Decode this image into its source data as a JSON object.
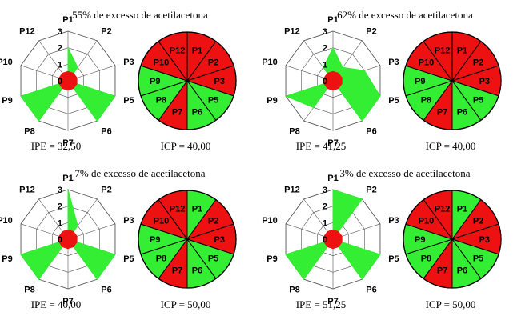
{
  "colors": {
    "good": "#33ee33",
    "bad": "#ee1111",
    "outline": "#000000",
    "grid": "#555555",
    "background": "#ffffff"
  },
  "chart_data": [
    {
      "type": "radar",
      "title": "55% de excesso de acetilacetona",
      "axes": [
        "P1",
        "P2",
        "P3",
        "P5",
        "P6",
        "P7",
        "P8",
        "P9",
        "P10",
        "P12"
      ],
      "rlim": [
        0,
        3
      ],
      "rticks": [
        "0",
        "1",
        "2",
        "3"
      ],
      "values": [
        2,
        1,
        0,
        3,
        3,
        0,
        3,
        3,
        0,
        0
      ],
      "ipe_label": "IPE = 32,50",
      "pie": {
        "type": "pie",
        "slices": [
          "P1",
          "P2",
          "P3",
          "P5",
          "P6",
          "P7",
          "P8",
          "P9",
          "P10",
          "P12"
        ],
        "status": [
          "bad",
          "bad",
          "bad",
          "good",
          "good",
          "bad",
          "good",
          "good",
          "bad",
          "bad"
        ]
      },
      "icp_label": "ICP = 40,00"
    },
    {
      "type": "radar",
      "title": "62% de excesso de acetilacetona",
      "axes": [
        "P1",
        "P2",
        "P3",
        "P5",
        "P6",
        "P7",
        "P8",
        "P9",
        "P10",
        "P12"
      ],
      "rlim": [
        0,
        3
      ],
      "rticks": [
        "0",
        "1",
        "2",
        "3"
      ],
      "values": [
        2,
        1,
        2,
        3,
        3,
        0,
        2,
        3,
        0,
        1
      ],
      "ipe_label": "IPE = 41,25",
      "pie": {
        "type": "pie",
        "slices": [
          "P1",
          "P2",
          "P3",
          "P5",
          "P6",
          "P7",
          "P8",
          "P9",
          "P10",
          "P12"
        ],
        "status": [
          "bad",
          "bad",
          "bad",
          "good",
          "good",
          "bad",
          "good",
          "good",
          "bad",
          "bad"
        ]
      },
      "icp_label": "ICP = 40,00"
    },
    {
      "type": "radar",
      "title": "7% de excesso de acetilacetona",
      "axes": [
        "P1",
        "P2",
        "P3",
        "P5",
        "P6",
        "P7",
        "P8",
        "P9",
        "P10",
        "P12"
      ],
      "rlim": [
        0,
        3
      ],
      "rticks": [
        "0",
        "1",
        "2",
        "3"
      ],
      "values": [
        3,
        1,
        0,
        3,
        3,
        0,
        3,
        3,
        0,
        0
      ],
      "ipe_label": "IPE = 40,00",
      "pie": {
        "type": "pie",
        "slices": [
          "P1",
          "P2",
          "P3",
          "P5",
          "P6",
          "P7",
          "P8",
          "P9",
          "P10",
          "P12"
        ],
        "status": [
          "good",
          "bad",
          "bad",
          "good",
          "good",
          "bad",
          "good",
          "good",
          "bad",
          "bad"
        ]
      },
      "icp_label": "ICP = 50,00"
    },
    {
      "type": "radar",
      "title": "3% de excesso de acetilacetona",
      "axes": [
        "P1",
        "P2",
        "P3",
        "P5",
        "P6",
        "P7",
        "P8",
        "P9",
        "P10",
        "P12"
      ],
      "rlim": [
        0,
        3
      ],
      "rticks": [
        "0",
        "1",
        "2",
        "3"
      ],
      "values": [
        3,
        3,
        0,
        3,
        3,
        0,
        3,
        3,
        0,
        0
      ],
      "ipe_label": "IPE = 51,25",
      "pie": {
        "type": "pie",
        "slices": [
          "P1",
          "P2",
          "P3",
          "P5",
          "P6",
          "P7",
          "P8",
          "P9",
          "P10",
          "P12"
        ],
        "status": [
          "good",
          "bad",
          "bad",
          "good",
          "good",
          "bad",
          "good",
          "good",
          "bad",
          "bad"
        ]
      },
      "icp_label": "ICP = 50,00"
    }
  ]
}
